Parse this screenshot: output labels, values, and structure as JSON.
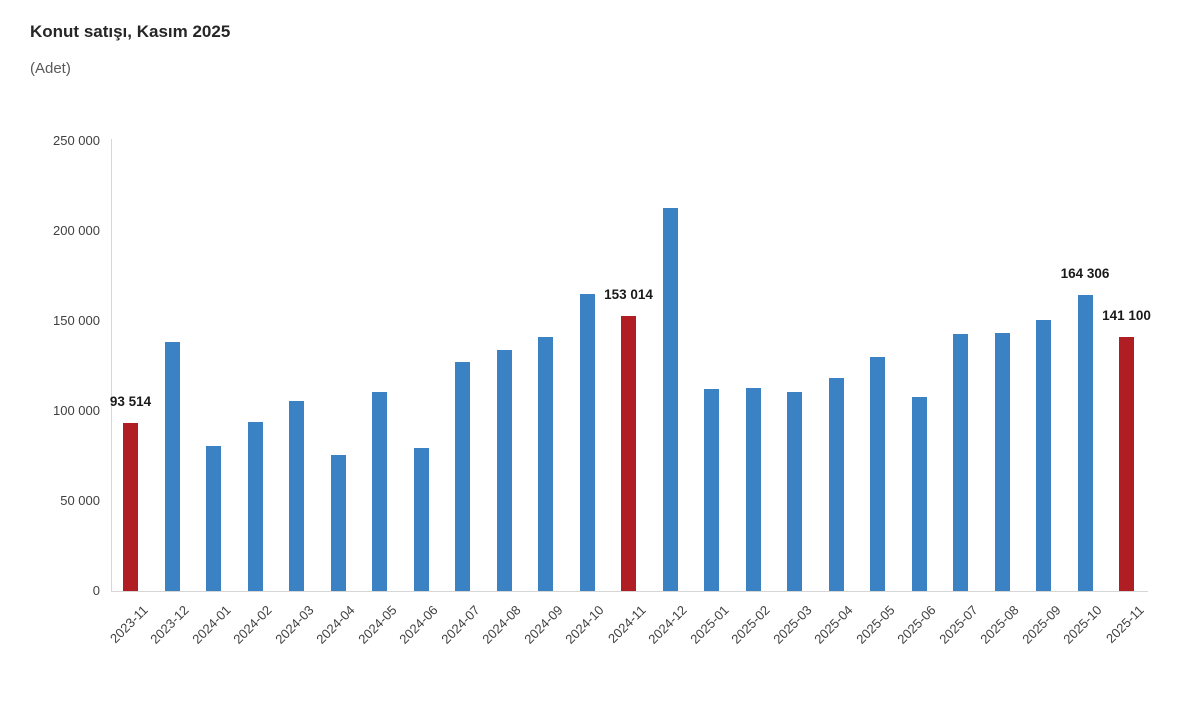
{
  "header": {
    "title": "Konut satışı, Kasım 2025",
    "subtitle": "(Adet)"
  },
  "chart_data": {
    "type": "bar",
    "title": "Konut satışı, Kasım 2025",
    "unit_label": "(Adet)",
    "xlabel": "",
    "ylabel": "",
    "ylim": [
      0,
      250000
    ],
    "grid": false,
    "legend": false,
    "ytick_values": [
      0,
      50000,
      100000,
      150000,
      200000,
      250000
    ],
    "ytick_labels": [
      "0",
      "50 000",
      "100 000",
      "150 000",
      "200 000",
      "250 000"
    ],
    "categories": [
      "2023-11",
      "2023-12",
      "2024-01",
      "2024-02",
      "2024-03",
      "2024-04",
      "2024-05",
      "2024-06",
      "2024-07",
      "2024-08",
      "2024-09",
      "2024-10",
      "2024-11",
      "2024-12",
      "2025-01",
      "2025-02",
      "2025-03",
      "2025-04",
      "2025-05",
      "2025-06",
      "2025-07",
      "2025-08",
      "2025-09",
      "2025-10",
      "2025-11"
    ],
    "values": [
      93514,
      138577,
      80308,
      93902,
      105476,
      75569,
      110588,
      79313,
      127088,
      134155,
      140919,
      165138,
      153014,
      212637,
      112173,
      112818,
      110795,
      118359,
      130025,
      107723,
      142858,
      143319,
      150738,
      164306,
      141100
    ],
    "highlight_months": [
      "2023-11",
      "2024-11",
      "2025-11"
    ],
    "value_labels": {
      "2023-11": "93 514",
      "2024-11": "153 014",
      "2025-10": "164 306",
      "2025-11": "141 100"
    },
    "colors": {
      "bar_default": "#3a82c3",
      "bar_highlight": "#b01e24",
      "axis_line": "#d6d6d6",
      "tick_text": "#404040",
      "label_text": "#1a1a1a"
    }
  }
}
